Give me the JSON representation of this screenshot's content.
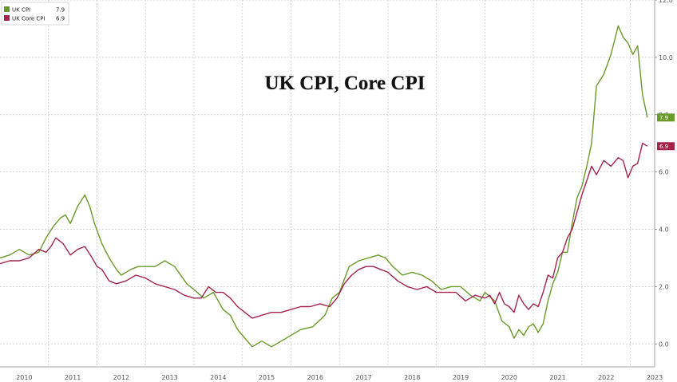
{
  "chart_data": {
    "type": "line",
    "title": "UK CPI, Core CPI",
    "xlabel": "",
    "ylabel": "",
    "x_ticks": [
      "2010",
      "2011",
      "2012",
      "2013",
      "2014",
      "2015",
      "2016",
      "2017",
      "2018",
      "2019",
      "2020",
      "2021",
      "2022",
      "2023"
    ],
    "y_ticks": [
      "0.0",
      "2.0",
      "4.0",
      "6.0",
      "8.0",
      "10.0",
      "12.0"
    ],
    "xlim": [
      2010.0,
      2023.5
    ],
    "ylim": [
      -0.8,
      12.0
    ],
    "grid": true,
    "legend_position": "top-left",
    "y_axis_position": "right",
    "series": [
      {
        "name": "UK CPI",
        "last_label": "7.9",
        "color": "#6a9a2a",
        "x": [
          2010.0,
          2010.2,
          2010.4,
          2010.6,
          2010.8,
          2010.95,
          2011.1,
          2011.25,
          2011.35,
          2011.45,
          2011.6,
          2011.75,
          2011.85,
          2011.95,
          2012.1,
          2012.25,
          2012.4,
          2012.5,
          2012.7,
          2012.85,
          2013.0,
          2013.2,
          2013.4,
          2013.6,
          2013.85,
          2014.0,
          2014.2,
          2014.4,
          2014.6,
          2014.75,
          2014.9,
          2015.0,
          2015.2,
          2015.4,
          2015.6,
          2015.8,
          2016.0,
          2016.2,
          2016.45,
          2016.7,
          2016.85,
          2017.0,
          2017.2,
          2017.4,
          2017.6,
          2017.8,
          2017.95,
          2018.1,
          2018.3,
          2018.5,
          2018.7,
          2018.9,
          2019.1,
          2019.3,
          2019.5,
          2019.7,
          2019.9,
          2020.0,
          2020.2,
          2020.35,
          2020.5,
          2020.6,
          2020.7,
          2020.8,
          2020.9,
          2021.0,
          2021.1,
          2021.2,
          2021.3,
          2021.4,
          2021.5,
          2021.6,
          2021.7,
          2021.8,
          2021.9,
          2022.0,
          2022.1,
          2022.2,
          2022.3,
          2022.45,
          2022.6,
          2022.75,
          2022.85,
          2022.95,
          2023.05,
          2023.15,
          2023.25,
          2023.35
        ],
        "values": [
          3.0,
          3.1,
          3.3,
          3.1,
          3.2,
          3.7,
          4.1,
          4.4,
          4.5,
          4.2,
          4.8,
          5.2,
          4.8,
          4.2,
          3.5,
          3.0,
          2.6,
          2.4,
          2.6,
          2.7,
          2.7,
          2.7,
          2.9,
          2.7,
          2.1,
          1.9,
          1.6,
          1.8,
          1.2,
          1.0,
          0.5,
          0.3,
          -0.1,
          0.1,
          -0.1,
          0.1,
          0.3,
          0.5,
          0.6,
          1.0,
          1.6,
          1.8,
          2.7,
          2.9,
          3.0,
          3.1,
          3.0,
          2.7,
          2.4,
          2.5,
          2.4,
          2.2,
          1.9,
          2.0,
          2.0,
          1.7,
          1.5,
          1.8,
          1.5,
          0.8,
          0.6,
          0.2,
          0.5,
          0.3,
          0.6,
          0.7,
          0.4,
          0.7,
          1.5,
          2.1,
          2.5,
          3.2,
          3.2,
          4.2,
          5.1,
          5.5,
          6.2,
          7.0,
          9.0,
          9.4,
          10.1,
          11.1,
          10.7,
          10.5,
          10.1,
          10.4,
          8.7,
          7.9
        ]
      },
      {
        "name": "UK Core CPI",
        "last_label": "6.9",
        "color": "#a3234a",
        "x": [
          2010.0,
          2010.2,
          2010.4,
          2010.6,
          2010.8,
          2010.95,
          2011.05,
          2011.15,
          2011.3,
          2011.45,
          2011.6,
          2011.75,
          2011.9,
          2012.0,
          2012.1,
          2012.25,
          2012.4,
          2012.6,
          2012.8,
          2013.0,
          2013.2,
          2013.4,
          2013.6,
          2013.8,
          2014.0,
          2014.15,
          2014.3,
          2014.45,
          2014.6,
          2014.75,
          2014.9,
          2015.05,
          2015.2,
          2015.4,
          2015.6,
          2015.8,
          2016.0,
          2016.2,
          2016.4,
          2016.6,
          2016.8,
          2016.95,
          2017.1,
          2017.25,
          2017.4,
          2017.55,
          2017.7,
          2017.85,
          2018.0,
          2018.2,
          2018.4,
          2018.6,
          2018.8,
          2019.0,
          2019.2,
          2019.4,
          2019.6,
          2019.8,
          2020.0,
          2020.1,
          2020.2,
          2020.3,
          2020.4,
          2020.5,
          2020.6,
          2020.7,
          2020.8,
          2020.9,
          2021.0,
          2021.1,
          2021.2,
          2021.3,
          2021.4,
          2021.5,
          2021.6,
          2021.7,
          2021.8,
          2021.9,
          2022.0,
          2022.1,
          2022.2,
          2022.3,
          2022.45,
          2022.6,
          2022.75,
          2022.85,
          2022.95,
          2023.05,
          2023.15,
          2023.25,
          2023.35
        ],
        "values": [
          2.8,
          2.9,
          2.9,
          3.0,
          3.3,
          3.2,
          3.4,
          3.7,
          3.5,
          3.1,
          3.3,
          3.4,
          3.0,
          2.7,
          2.6,
          2.2,
          2.1,
          2.2,
          2.4,
          2.3,
          2.1,
          2.0,
          1.9,
          1.7,
          1.6,
          1.6,
          2.0,
          1.8,
          1.8,
          1.6,
          1.3,
          1.1,
          0.9,
          1.0,
          1.1,
          1.1,
          1.2,
          1.3,
          1.3,
          1.4,
          1.3,
          1.6,
          2.1,
          2.4,
          2.6,
          2.7,
          2.7,
          2.6,
          2.5,
          2.2,
          2.0,
          1.9,
          2.0,
          1.8,
          1.8,
          1.8,
          1.5,
          1.7,
          1.6,
          1.7,
          1.4,
          1.8,
          1.4,
          1.3,
          1.1,
          1.7,
          1.4,
          1.2,
          1.4,
          1.3,
          1.8,
          2.4,
          2.3,
          3.0,
          3.2,
          3.7,
          4.0,
          4.6,
          5.2,
          5.7,
          6.2,
          5.9,
          6.4,
          6.2,
          6.5,
          6.4,
          5.8,
          6.2,
          6.3,
          7.0,
          6.9
        ]
      }
    ]
  }
}
